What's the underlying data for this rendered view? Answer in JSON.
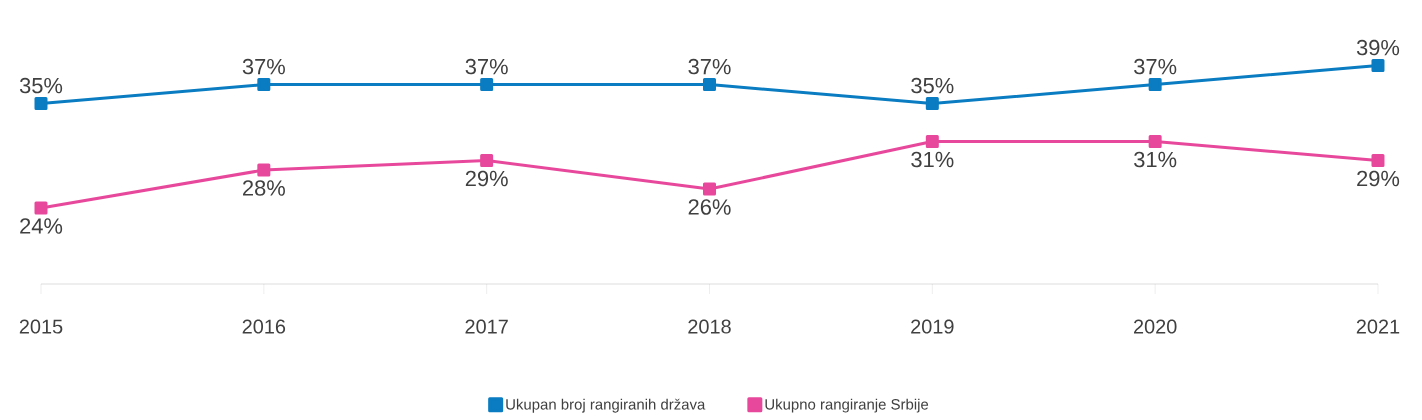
{
  "chart_data": {
    "type": "line",
    "categories": [
      "2015",
      "2016",
      "2017",
      "2018",
      "2019",
      "2020",
      "2021"
    ],
    "series": [
      {
        "name": "Ukupan broj rangiranih država",
        "color": "#0a7cc1",
        "values": [
          35,
          37,
          37,
          37,
          35,
          37,
          39
        ],
        "value_labels": [
          "35%",
          "37%",
          "37%",
          "37%",
          "35%",
          "37%",
          "39%"
        ]
      },
      {
        "name": "Ukupno rangiranje Srbije",
        "color": "#e8489b",
        "values": [
          24,
          28,
          29,
          26,
          31,
          31,
          29
        ],
        "value_labels": [
          "24%",
          "28%",
          "29%",
          "26%",
          "31%",
          "31%",
          "29%"
        ]
      }
    ],
    "tick_labels": "x",
    "marker": "square",
    "line_style": "solid",
    "legend": "bottom",
    "grid": false
  }
}
